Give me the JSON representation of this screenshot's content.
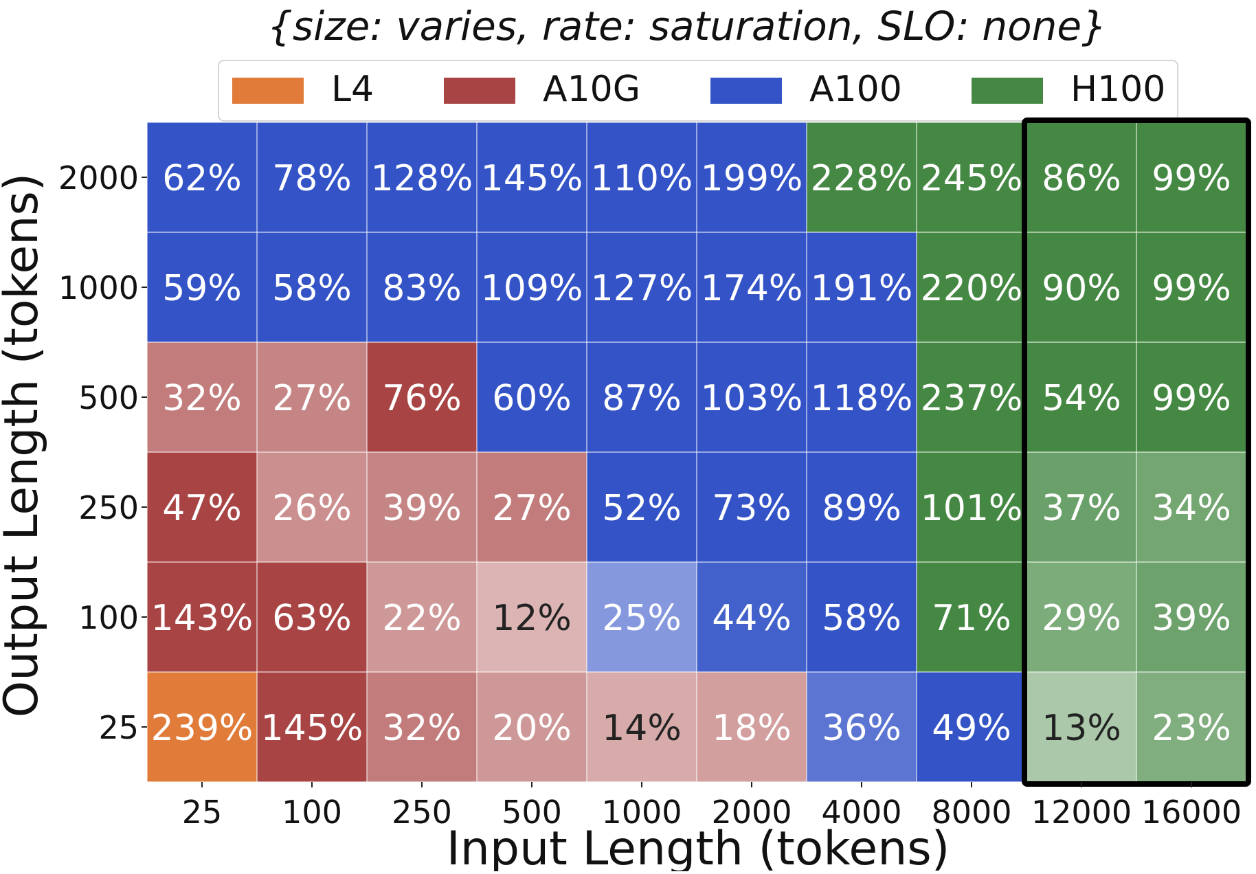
{
  "chart_data": {
    "type": "heatmap",
    "title": "{size: varies, rate: saturation, SLO: none}",
    "xlabel": "Input Length (tokens)",
    "ylabel": "Output Length (tokens)",
    "x_categories": [
      "25",
      "100",
      "250",
      "500",
      "1000",
      "2000",
      "4000",
      "8000",
      "12000",
      "16000"
    ],
    "y_categories": [
      "2000",
      "1000",
      "500",
      "250",
      "100",
      "25"
    ],
    "legend": {
      "placement": "top",
      "entries": [
        {
          "name": "L4",
          "color": "#e07b39"
        },
        {
          "name": "A10G",
          "color": "#a84444"
        },
        {
          "name": "A100",
          "color": "#3353c7"
        },
        {
          "name": "H100",
          "color": "#458843"
        }
      ]
    },
    "gpu_colors": {
      "L4": "#e07b39",
      "A10G": "#a84444",
      "A100": "#3353c7",
      "H100": "#458843"
    },
    "highlight": {
      "columns": [
        "12000",
        "16000"
      ],
      "style": "black-border"
    },
    "cells": [
      [
        {
          "gpu": "A100",
          "label": "62%",
          "intensity": 1.0
        },
        {
          "gpu": "A100",
          "label": "78%",
          "intensity": 1.0
        },
        {
          "gpu": "A100",
          "label": "128%",
          "intensity": 1.0
        },
        {
          "gpu": "A100",
          "label": "145%",
          "intensity": 1.0
        },
        {
          "gpu": "A100",
          "label": "110%",
          "intensity": 1.0
        },
        {
          "gpu": "A100",
          "label": "199%",
          "intensity": 1.0
        },
        {
          "gpu": "H100",
          "label": "228%",
          "intensity": 1.0
        },
        {
          "gpu": "H100",
          "label": "245%",
          "intensity": 1.0
        },
        {
          "gpu": "H100",
          "label": "86%",
          "intensity": 1.0
        },
        {
          "gpu": "H100",
          "label": "99%",
          "intensity": 1.0
        }
      ],
      [
        {
          "gpu": "A100",
          "label": "59%",
          "intensity": 1.0
        },
        {
          "gpu": "A100",
          "label": "58%",
          "intensity": 1.0
        },
        {
          "gpu": "A100",
          "label": "83%",
          "intensity": 1.0
        },
        {
          "gpu": "A100",
          "label": "109%",
          "intensity": 1.0
        },
        {
          "gpu": "A100",
          "label": "127%",
          "intensity": 1.0
        },
        {
          "gpu": "A100",
          "label": "174%",
          "intensity": 1.0
        },
        {
          "gpu": "A100",
          "label": "191%",
          "intensity": 1.0
        },
        {
          "gpu": "H100",
          "label": "220%",
          "intensity": 1.0
        },
        {
          "gpu": "H100",
          "label": "90%",
          "intensity": 1.0
        },
        {
          "gpu": "H100",
          "label": "99%",
          "intensity": 1.0
        }
      ],
      [
        {
          "gpu": "A10G",
          "label": "32%",
          "intensity": 0.7
        },
        {
          "gpu": "A10G",
          "label": "27%",
          "intensity": 0.65
        },
        {
          "gpu": "A10G",
          "label": "76%",
          "intensity": 1.0
        },
        {
          "gpu": "A100",
          "label": "60%",
          "intensity": 1.0
        },
        {
          "gpu": "A100",
          "label": "87%",
          "intensity": 1.0
        },
        {
          "gpu": "A100",
          "label": "103%",
          "intensity": 1.0
        },
        {
          "gpu": "A100",
          "label": "118%",
          "intensity": 1.0
        },
        {
          "gpu": "H100",
          "label": "237%",
          "intensity": 1.0
        },
        {
          "gpu": "H100",
          "label": "54%",
          "intensity": 1.0
        },
        {
          "gpu": "H100",
          "label": "99%",
          "intensity": 1.0
        }
      ],
      [
        {
          "gpu": "A10G",
          "label": "47%",
          "intensity": 1.0
        },
        {
          "gpu": "A10G",
          "label": "26%",
          "intensity": 0.6
        },
        {
          "gpu": "A10G",
          "label": "39%",
          "intensity": 0.65
        },
        {
          "gpu": "A10G",
          "label": "27%",
          "intensity": 0.7
        },
        {
          "gpu": "A100",
          "label": "52%",
          "intensity": 1.0
        },
        {
          "gpu": "A100",
          "label": "73%",
          "intensity": 1.0
        },
        {
          "gpu": "A100",
          "label": "89%",
          "intensity": 1.0
        },
        {
          "gpu": "H100",
          "label": "101%",
          "intensity": 1.0
        },
        {
          "gpu": "H100",
          "label": "37%",
          "intensity": 0.8
        },
        {
          "gpu": "H100",
          "label": "34%",
          "intensity": 0.75
        }
      ],
      [
        {
          "gpu": "A10G",
          "label": "143%",
          "intensity": 1.0
        },
        {
          "gpu": "A10G",
          "label": "63%",
          "intensity": 1.0
        },
        {
          "gpu": "A10G",
          "label": "22%",
          "intensity": 0.55
        },
        {
          "gpu": "A10G",
          "label": "12%",
          "intensity": 0.4
        },
        {
          "gpu": "A100",
          "label": "25%",
          "intensity": 0.6
        },
        {
          "gpu": "A100",
          "label": "44%",
          "intensity": 0.92
        },
        {
          "gpu": "A100",
          "label": "58%",
          "intensity": 1.0
        },
        {
          "gpu": "H100",
          "label": "71%",
          "intensity": 1.0
        },
        {
          "gpu": "H100",
          "label": "29%",
          "intensity": 0.7
        },
        {
          "gpu": "H100",
          "label": "39%",
          "intensity": 0.78
        }
      ],
      [
        {
          "gpu": "L4",
          "label": "239%",
          "intensity": 1.0
        },
        {
          "gpu": "A10G",
          "label": "145%",
          "intensity": 1.0
        },
        {
          "gpu": "A10G",
          "label": "32%",
          "intensity": 0.7
        },
        {
          "gpu": "A10G",
          "label": "20%",
          "intensity": 0.55
        },
        {
          "gpu": "A10G",
          "label": "14%",
          "intensity": 0.45
        },
        {
          "gpu": "A10G",
          "label": "18%",
          "intensity": 0.52
        },
        {
          "gpu": "A100",
          "label": "36%",
          "intensity": 0.8
        },
        {
          "gpu": "A100",
          "label": "49%",
          "intensity": 1.0
        },
        {
          "gpu": "H100",
          "label": "13%",
          "intensity": 0.45
        },
        {
          "gpu": "H100",
          "label": "23%",
          "intensity": 0.68
        }
      ]
    ]
  }
}
